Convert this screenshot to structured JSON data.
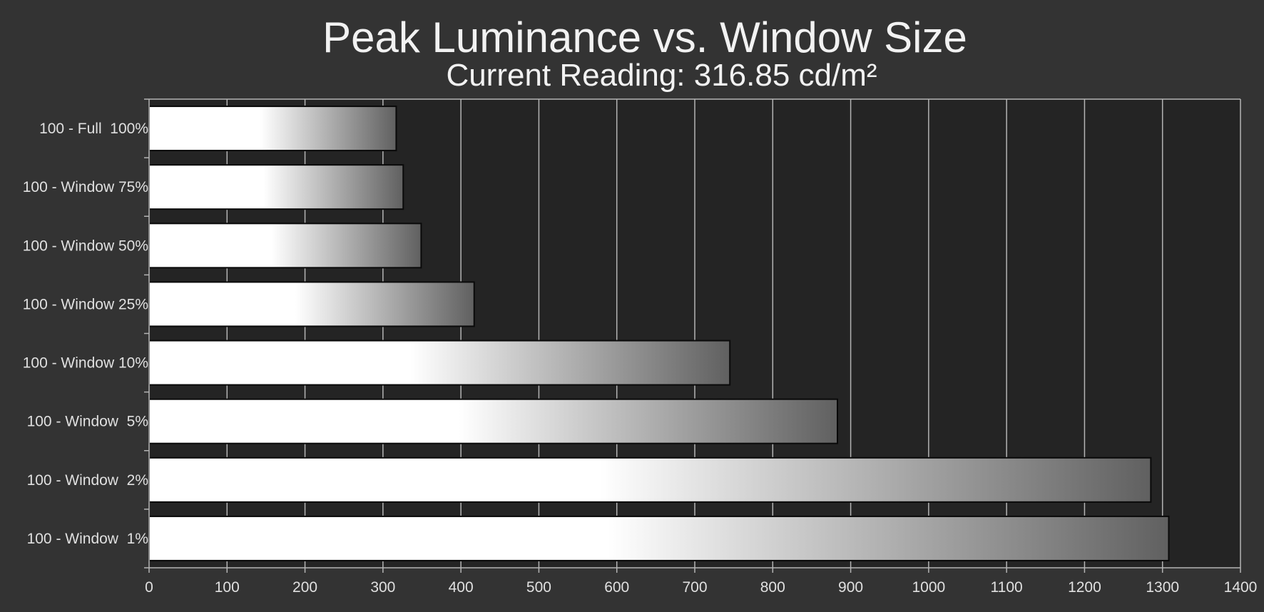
{
  "chart_data": {
    "type": "bar",
    "orientation": "horizontal",
    "title": "Peak Luminance vs. Window Size",
    "subtitle": "Current Reading: 316.85 cd/m²",
    "categories": [
      "100 - Full  100%",
      "100 - Window 75%",
      "100 - Window 50%",
      "100 - Window 25%",
      "100 - Window 10%",
      "100 - Window  5%",
      "100 - Window  2%",
      "100 - Window  1%"
    ],
    "values": [
      317,
      326,
      349,
      417,
      745,
      883,
      1285,
      1308
    ],
    "xlim": [
      0,
      1400
    ],
    "xticks": [
      0,
      100,
      200,
      300,
      400,
      500,
      600,
      700,
      800,
      900,
      1000,
      1100,
      1200,
      1300,
      1400
    ],
    "xlabel": "",
    "ylabel": "",
    "grid": "vertical",
    "legend": "none",
    "colors": {
      "background": "#333333",
      "plot_background": "#242424",
      "gridline": "#b4b4b4",
      "bar_start": "#ffffff",
      "bar_end": "#606060",
      "bar_border": "#0a0a0a"
    }
  }
}
